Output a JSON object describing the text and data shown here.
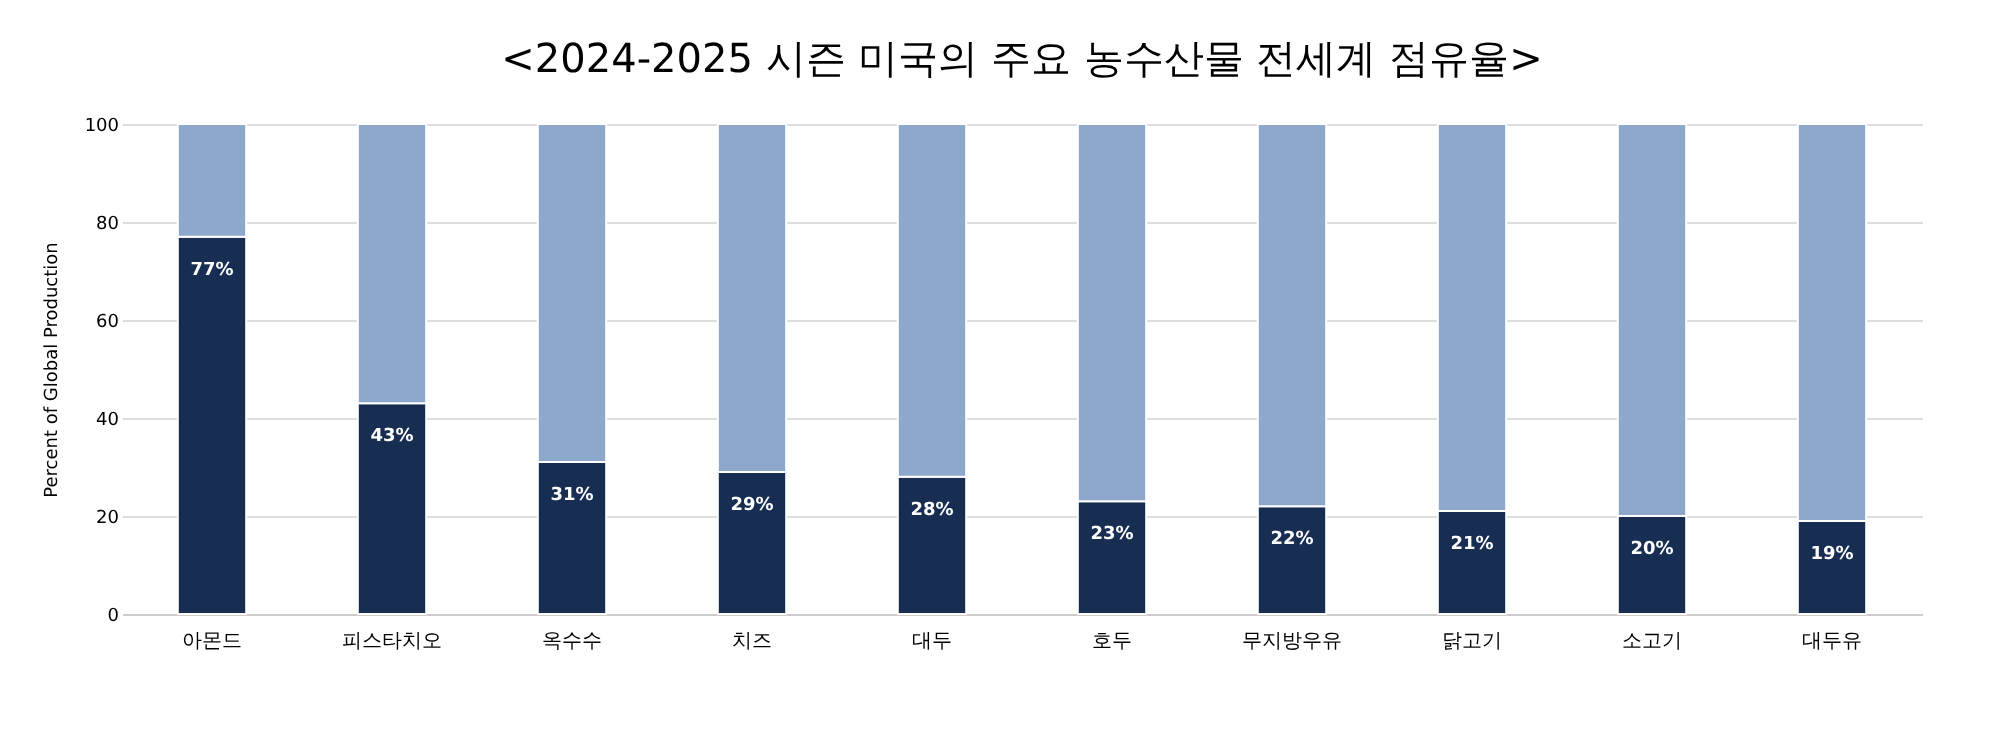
{
  "chart_data": {
    "type": "bar",
    "title": "<2024-2025 시즌 미국의 주요 농수산물 전세계 점유율>",
    "ylabel": "Percent of Global Production",
    "categories": [
      "아몬드",
      "피스타치오",
      "옥수수",
      "치즈",
      "대두",
      "호두",
      "무지방우유",
      "닭고기",
      "소고기",
      "대두유"
    ],
    "stacked": true,
    "series": [
      {
        "color": "#172d52",
        "values": [
          77,
          43,
          31,
          29,
          28,
          23,
          22,
          21,
          20,
          19
        ],
        "value_labels": [
          "77%",
          "43%",
          "31%",
          "29%",
          "28%",
          "23%",
          "22%",
          "21%",
          "20%",
          "19%"
        ]
      },
      {
        "color": "#8ea8cc",
        "values": [
          23,
          57,
          69,
          71,
          72,
          77,
          78,
          79,
          80,
          81
        ]
      }
    ],
    "ylim": [
      0,
      100
    ],
    "yticks": [
      0,
      20,
      40,
      60,
      80,
      100
    ],
    "grid": "y",
    "legend": false
  }
}
